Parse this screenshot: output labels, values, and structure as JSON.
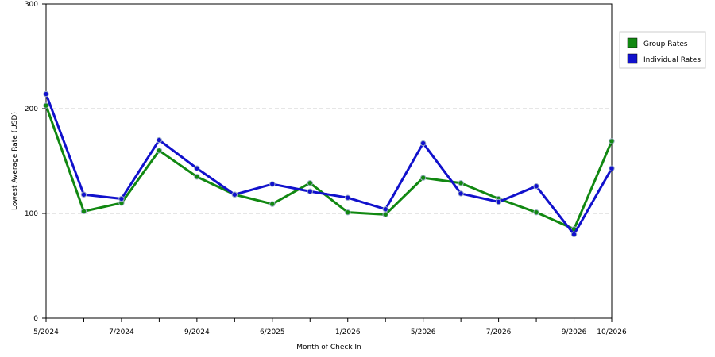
{
  "chart_data": {
    "type": "line",
    "xlabel": "Month of Check In",
    "ylabel": "Lowest Average Rate (USD)",
    "ylim": [
      0,
      300
    ],
    "yticks": [
      0,
      100,
      200,
      300
    ],
    "grid": true,
    "legend_position": "right",
    "x_tick_labels": [
      "5/2024",
      "",
      "7/2024",
      "",
      "9/2024",
      "",
      "6/2025",
      "",
      "1/2026",
      "",
      "5/2026",
      "",
      "7/2026",
      "",
      "9/2026",
      "10/2026"
    ],
    "series": [
      {
        "name": "Group Rates",
        "color": "#118811",
        "values": [
          203,
          102,
          110,
          160,
          135,
          118,
          109,
          129,
          101,
          99,
          134,
          129,
          114,
          101,
          85,
          169
        ]
      },
      {
        "name": "Individual Rates",
        "color": "#1111cc",
        "values": [
          214,
          118,
          114,
          170,
          143,
          118,
          128,
          121,
          115,
          104,
          167,
          119,
          111,
          126,
          80,
          143
        ]
      }
    ]
  }
}
